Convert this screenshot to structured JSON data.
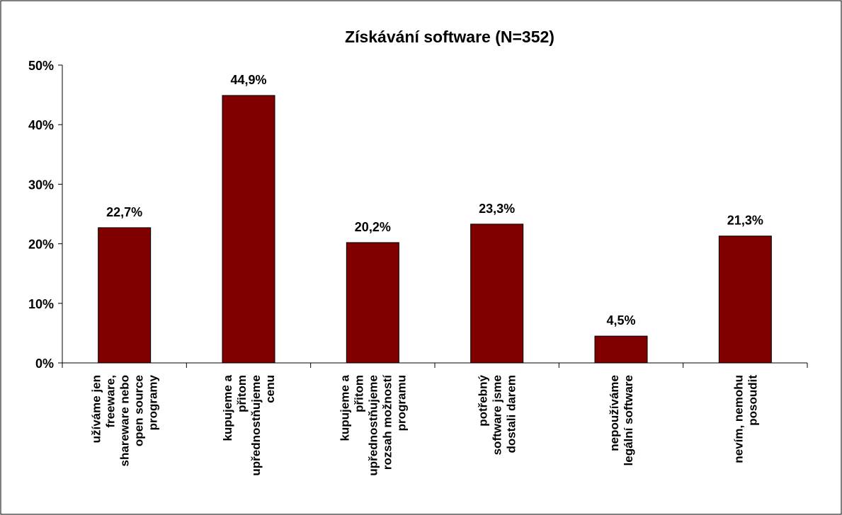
{
  "chart_data": {
    "type": "bar",
    "title": "Získávání software (N=352)",
    "categories": [
      [
        "užíváme jen",
        "freeware,",
        "shareware nebo",
        "open source",
        "programy"
      ],
      [
        "kupujeme a",
        "přitom",
        "upřednostňujeme",
        "cenu"
      ],
      [
        "kupujeme a",
        "přitom",
        "upřednostňujeme",
        "rozsah možností",
        "programu"
      ],
      [
        "potřebný",
        "software jsme",
        "dostali darem"
      ],
      [
        "nepoužíváme",
        "legální software"
      ],
      [
        "nevím, nemohu",
        "posoudit"
      ]
    ],
    "values": [
      22.7,
      44.9,
      20.2,
      23.3,
      4.5,
      21.3
    ],
    "value_labels": [
      "22,7%",
      "44,9%",
      "20,2%",
      "23,3%",
      "4,5%",
      "21,3%"
    ],
    "color": "#800000",
    "ylim": [
      0,
      50
    ],
    "yticks": [
      {
        "value": 0,
        "label": "0%"
      },
      {
        "value": 10,
        "label": "10%"
      },
      {
        "value": 20,
        "label": "20%"
      },
      {
        "value": 30,
        "label": "30%"
      },
      {
        "value": 40,
        "label": "40%"
      },
      {
        "value": 50,
        "label": "50%"
      }
    ]
  }
}
